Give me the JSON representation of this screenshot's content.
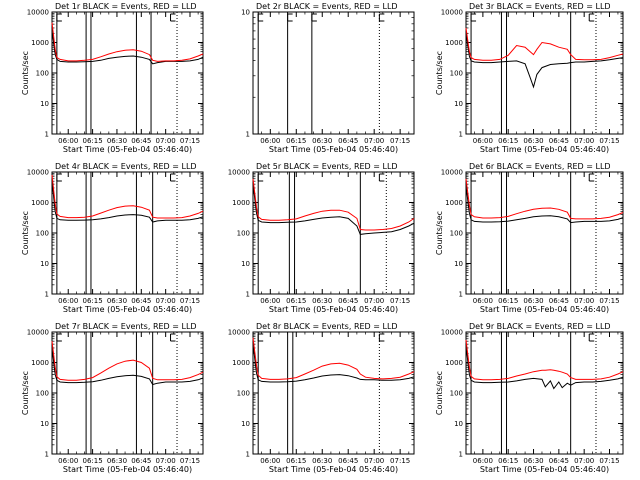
{
  "figure": {
    "background": "#ffffff",
    "colors": {
      "events": "#000000",
      "lld": "#ff0000",
      "axes": "#000000"
    }
  },
  "chart_data": [
    {
      "type": "line",
      "title": "Det 1r  BLACK = Events, RED = LLD",
      "xlabel": "Start Time (05-Feb-04 05:46:40)",
      "ylabel": "Counts/sec",
      "yscale": "log",
      "ylim": [
        1,
        10000
      ],
      "xlim": [
        "05:50",
        "07:23"
      ],
      "xticks": [
        "06:00",
        "06:15",
        "06:30",
        "06:45",
        "07:00",
        "07:15"
      ],
      "yticks": [
        "1",
        "10",
        "100",
        "1000",
        "10000"
      ],
      "solid_vlines": [
        "05:53",
        "06:11",
        "06:14",
        "06:42",
        "06:51"
      ],
      "dotted_vlines": [
        "07:07"
      ],
      "flag_marks": [
        "05:53",
        "07:03"
      ],
      "x": [
        "05:50",
        "05:52",
        "05:53",
        "05:55",
        "06:00",
        "06:05",
        "06:10",
        "06:15",
        "06:20",
        "06:25",
        "06:30",
        "06:35",
        "06:40",
        "06:45",
        "06:50",
        "06:52",
        "06:55",
        "07:00",
        "07:05",
        "07:10",
        "07:15",
        "07:20",
        "07:23"
      ],
      "series": [
        {
          "name": "BLACK = Events",
          "color": "#000000",
          "values": [
            2500,
            400,
            280,
            240,
            230,
            230,
            235,
            240,
            260,
            300,
            330,
            350,
            360,
            330,
            280,
            200,
            220,
            240,
            240,
            240,
            250,
            280,
            330
          ]
        },
        {
          "name": "RED = LLD",
          "color": "#ff0000",
          "values": [
            4500,
            600,
            320,
            280,
            250,
            250,
            260,
            280,
            340,
            420,
            500,
            560,
            580,
            520,
            400,
            260,
            240,
            250,
            250,
            260,
            290,
            360,
            420
          ]
        }
      ]
    },
    {
      "type": "line",
      "title": "Det 2r  BLACK = Events, RED = LLD",
      "xlabel": "Start Time (05-Feb-04 05:46:40)",
      "ylabel": "",
      "yscale": "log",
      "ylim": [
        1,
        10
      ],
      "xlim": [
        "05:50",
        "07:23"
      ],
      "xticks": [
        "06:00",
        "06:15",
        "06:30",
        "06:45",
        "07:00",
        "07:15"
      ],
      "yticks": [
        "1",
        "10"
      ],
      "solid_vlines": [
        "05:53",
        "06:10",
        "06:24"
      ],
      "dotted_vlines": [
        "07:03",
        "07:23"
      ],
      "flag_marks": [
        "05:53",
        "06:10",
        "06:24",
        "07:03"
      ],
      "x": [],
      "series": []
    },
    {
      "type": "line",
      "title": "Det 3r  BLACK = Events, RED = LLD",
      "xlabel": "Start Time (05-Feb-04 05:46:40)",
      "ylabel": "Counts/sec",
      "yscale": "log",
      "ylim": [
        1,
        10000
      ],
      "xlim": [
        "05:50",
        "07:23"
      ],
      "xticks": [
        "06:00",
        "06:15",
        "06:30",
        "06:45",
        "07:00",
        "07:15"
      ],
      "yticks": [
        "1",
        "10",
        "100",
        "1000",
        "10000"
      ],
      "solid_vlines": [
        "05:53",
        "06:11",
        "06:14",
        "06:52"
      ],
      "dotted_vlines": [
        "07:07"
      ],
      "flag_marks": [
        "05:53",
        "07:03"
      ],
      "x": [
        "05:50",
        "05:52",
        "05:53",
        "05:55",
        "06:00",
        "06:05",
        "06:10",
        "06:15",
        "06:20",
        "06:25",
        "06:28",
        "06:30",
        "06:32",
        "06:35",
        "06:40",
        "06:45",
        "06:50",
        "06:52",
        "06:55",
        "07:00",
        "07:05",
        "07:10",
        "07:15",
        "07:20",
        "07:23"
      ],
      "series": [
        {
          "name": "BLACK = Events",
          "color": "#000000",
          "values": [
            2000,
            350,
            250,
            230,
            220,
            220,
            230,
            240,
            250,
            200,
            70,
            35,
            90,
            150,
            190,
            200,
            210,
            220,
            230,
            230,
            240,
            250,
            270,
            300,
            320
          ]
        },
        {
          "name": "RED = LLD",
          "color": "#ff0000",
          "values": [
            3000,
            500,
            320,
            280,
            260,
            260,
            280,
            380,
            800,
            700,
            500,
            400,
            600,
            1000,
            900,
            700,
            600,
            400,
            280,
            270,
            270,
            280,
            320,
            380,
            420
          ]
        }
      ]
    },
    {
      "type": "line",
      "title": "Det 4r  BLACK = Events, RED = LLD",
      "xlabel": "Start Time (05-Feb-04 05:46:40)",
      "ylabel": "Counts/sec",
      "yscale": "log",
      "ylim": [
        1,
        10000
      ],
      "xlim": [
        "05:50",
        "07:23"
      ],
      "xticks": [
        "06:00",
        "06:15",
        "06:30",
        "06:45",
        "07:00",
        "07:15"
      ],
      "yticks": [
        "1",
        "10",
        "100",
        "1000",
        "10000"
      ],
      "solid_vlines": [
        "05:53",
        "06:11",
        "06:14",
        "06:42",
        "06:52"
      ],
      "dotted_vlines": [
        "07:07"
      ],
      "flag_marks": [
        "05:53",
        "07:03"
      ],
      "x": [
        "05:50",
        "05:52",
        "05:53",
        "05:55",
        "06:00",
        "06:05",
        "06:10",
        "06:15",
        "06:20",
        "06:25",
        "06:30",
        "06:35",
        "06:40",
        "06:45",
        "06:50",
        "06:52",
        "06:55",
        "07:00",
        "07:05",
        "07:10",
        "07:15",
        "07:20",
        "07:23"
      ],
      "series": [
        {
          "name": "BLACK = Events",
          "color": "#000000",
          "values": [
            5000,
            500,
            300,
            270,
            260,
            260,
            265,
            270,
            290,
            320,
            360,
            390,
            400,
            380,
            330,
            230,
            250,
            260,
            260,
            260,
            270,
            300,
            340
          ]
        },
        {
          "name": "RED = LLD",
          "color": "#ff0000",
          "values": [
            8000,
            900,
            420,
            350,
            320,
            320,
            330,
            360,
            450,
            560,
            680,
            760,
            780,
            700,
            560,
            330,
            310,
            310,
            310,
            320,
            360,
            440,
            520
          ]
        }
      ]
    },
    {
      "type": "line",
      "title": "Det 5r  BLACK = Events, RED = LLD",
      "xlabel": "Start Time (05-Feb-04 05:46:40)",
      "ylabel": "",
      "yscale": "log",
      "ylim": [
        1,
        10000
      ],
      "xlim": [
        "05:50",
        "07:23"
      ],
      "xticks": [
        "06:00",
        "06:15",
        "06:30",
        "06:45",
        "07:00",
        "07:15"
      ],
      "yticks": [
        "1",
        "10",
        "100",
        "1000",
        "10000"
      ],
      "solid_vlines": [
        "05:53",
        "06:11",
        "06:14",
        "06:52"
      ],
      "dotted_vlines": [
        "07:07"
      ],
      "flag_marks": [
        "05:53",
        "07:03"
      ],
      "x": [
        "05:50",
        "05:52",
        "05:53",
        "05:55",
        "06:00",
        "06:05",
        "06:10",
        "06:15",
        "06:20",
        "06:25",
        "06:30",
        "06:35",
        "06:40",
        "06:45",
        "06:50",
        "06:52",
        "06:55",
        "07:00",
        "07:05",
        "07:10",
        "07:15",
        "07:20",
        "07:23"
      ],
      "series": [
        {
          "name": "BLACK = Events",
          "color": "#000000",
          "values": [
            4000,
            450,
            260,
            230,
            220,
            220,
            225,
            230,
            250,
            280,
            310,
            330,
            340,
            300,
            170,
            90,
            95,
            100,
            105,
            110,
            130,
            170,
            210
          ]
        },
        {
          "name": "RED = LLD",
          "color": "#ff0000",
          "values": [
            6000,
            700,
            340,
            280,
            260,
            260,
            270,
            290,
            360,
            440,
            520,
            560,
            560,
            480,
            300,
            130,
            125,
            125,
            130,
            140,
            170,
            230,
            300
          ]
        }
      ]
    },
    {
      "type": "line",
      "title": "Det 6r  BLACK = Events, RED = LLD",
      "xlabel": "Start Time (05-Feb-04 05:46:40)",
      "ylabel": "Counts/sec",
      "yscale": "log",
      "ylim": [
        1,
        10000
      ],
      "xlim": [
        "05:50",
        "07:23"
      ],
      "xticks": [
        "06:00",
        "06:15",
        "06:30",
        "06:45",
        "07:00",
        "07:15"
      ],
      "yticks": [
        "1",
        "10",
        "100",
        "1000",
        "10000"
      ],
      "solid_vlines": [
        "05:53",
        "06:11",
        "06:14",
        "06:52"
      ],
      "dotted_vlines": [
        "07:07"
      ],
      "flag_marks": [
        "05:53",
        "07:03"
      ],
      "x": [
        "05:50",
        "05:52",
        "05:53",
        "05:55",
        "06:00",
        "06:05",
        "06:10",
        "06:15",
        "06:20",
        "06:25",
        "06:30",
        "06:35",
        "06:40",
        "06:45",
        "06:50",
        "06:52",
        "06:55",
        "07:00",
        "07:05",
        "07:10",
        "07:15",
        "07:20",
        "07:23"
      ],
      "series": [
        {
          "name": "BLACK = Events",
          "color": "#000000",
          "values": [
            3500,
            450,
            270,
            240,
            230,
            230,
            235,
            245,
            270,
            300,
            340,
            360,
            370,
            340,
            290,
            220,
            230,
            240,
            240,
            240,
            250,
            280,
            320
          ]
        },
        {
          "name": "RED = LLD",
          "color": "#ff0000",
          "values": [
            6000,
            800,
            400,
            340,
            310,
            310,
            320,
            350,
            430,
            520,
            600,
            650,
            660,
            600,
            480,
            300,
            290,
            290,
            290,
            300,
            330,
            400,
            470
          ]
        }
      ]
    },
    {
      "type": "line",
      "title": "Det 7r  BLACK = Events, RED = LLD",
      "xlabel": "Start Time (05-Feb-04 05:46:40)",
      "ylabel": "Counts/sec",
      "yscale": "log",
      "ylim": [
        1,
        10000
      ],
      "xlim": [
        "05:50",
        "07:23"
      ],
      "xticks": [
        "06:00",
        "06:15",
        "06:30",
        "06:45",
        "07:00",
        "07:15"
      ],
      "yticks": [
        "1",
        "10",
        "100",
        "1000",
        "10000"
      ],
      "solid_vlines": [
        "05:53",
        "06:11",
        "06:14",
        "06:42",
        "06:52"
      ],
      "dotted_vlines": [
        "07:07"
      ],
      "flag_marks": [
        "05:53",
        "07:03"
      ],
      "x": [
        "05:50",
        "05:52",
        "05:53",
        "05:55",
        "06:00",
        "06:05",
        "06:10",
        "06:15",
        "06:20",
        "06:25",
        "06:30",
        "06:35",
        "06:40",
        "06:45",
        "06:50",
        "06:52",
        "06:55",
        "07:00",
        "07:05",
        "07:10",
        "07:15",
        "07:20",
        "07:23"
      ],
      "series": [
        {
          "name": "BLACK = Events",
          "color": "#000000",
          "values": [
            3000,
            400,
            260,
            230,
            220,
            220,
            225,
            235,
            260,
            300,
            340,
            370,
            380,
            350,
            290,
            190,
            210,
            230,
            230,
            230,
            240,
            270,
            310
          ]
        },
        {
          "name": "RED = LLD",
          "color": "#ff0000",
          "values": [
            5000,
            700,
            340,
            280,
            260,
            260,
            280,
            320,
            450,
            650,
            900,
            1100,
            1200,
            1000,
            650,
            300,
            270,
            270,
            270,
            280,
            320,
            400,
            480
          ]
        }
      ]
    },
    {
      "type": "line",
      "title": "Det 8r  BLACK = Events, RED = LLD",
      "xlabel": "Start Time (05-Feb-04 05:46:40)",
      "ylabel": "",
      "yscale": "log",
      "ylim": [
        1,
        10000
      ],
      "xlim": [
        "05:50",
        "07:23"
      ],
      "xticks": [
        "06:00",
        "06:15",
        "06:30",
        "06:45",
        "07:00",
        "07:15"
      ],
      "yticks": [
        "1",
        "10",
        "100",
        "1000",
        "10000"
      ],
      "solid_vlines": [
        "05:53",
        "06:10",
        "06:13"
      ],
      "dotted_vlines": [
        "07:03"
      ],
      "flag_marks": [
        "05:53",
        "07:03"
      ],
      "x": [
        "05:50",
        "05:52",
        "05:53",
        "05:55",
        "06:00",
        "06:05",
        "06:10",
        "06:15",
        "06:20",
        "06:25",
        "06:30",
        "06:35",
        "06:40",
        "06:45",
        "06:50",
        "06:52",
        "06:55",
        "07:00",
        "07:05",
        "07:10",
        "07:15",
        "07:20",
        "07:23"
      ],
      "series": [
        {
          "name": "BLACK = Events",
          "color": "#000000",
          "values": [
            4000,
            450,
            270,
            240,
            230,
            230,
            235,
            245,
            270,
            310,
            360,
            390,
            400,
            370,
            310,
            280,
            270,
            270,
            260,
            260,
            270,
            300,
            340
          ]
        },
        {
          "name": "RED = LLD",
          "color": "#ff0000",
          "values": [
            6500,
            800,
            380,
            300,
            280,
            280,
            290,
            320,
            420,
            560,
            760,
            900,
            940,
            820,
            600,
            420,
            330,
            300,
            290,
            300,
            330,
            420,
            500
          ]
        }
      ]
    },
    {
      "type": "line",
      "title": "Det 9r  BLACK = Events, RED = LLD",
      "xlabel": "Start Time (05-Feb-04 05:46:40)",
      "ylabel": "Counts/sec",
      "yscale": "log",
      "ylim": [
        1,
        10000
      ],
      "xlim": [
        "05:50",
        "07:23"
      ],
      "xticks": [
        "06:00",
        "06:15",
        "06:30",
        "06:45",
        "07:00",
        "07:15"
      ],
      "yticks": [
        "1",
        "10",
        "100",
        "1000",
        "10000"
      ],
      "solid_vlines": [
        "05:53",
        "06:11",
        "06:14",
        "06:52"
      ],
      "dotted_vlines": [
        "07:07"
      ],
      "flag_marks": [
        "05:53",
        "07:03"
      ],
      "x": [
        "05:50",
        "05:52",
        "05:53",
        "05:55",
        "06:00",
        "06:05",
        "06:10",
        "06:15",
        "06:20",
        "06:25",
        "06:30",
        "06:35",
        "06:37",
        "06:40",
        "06:42",
        "06:45",
        "06:47",
        "06:50",
        "06:52",
        "06:55",
        "07:00",
        "07:05",
        "07:10",
        "07:15",
        "07:20",
        "07:23"
      ],
      "series": [
        {
          "name": "BLACK = Events",
          "color": "#000000",
          "values": [
            3500,
            400,
            260,
            230,
            220,
            220,
            225,
            230,
            250,
            280,
            300,
            280,
            160,
            250,
            140,
            230,
            150,
            210,
            180,
            220,
            230,
            230,
            240,
            260,
            290,
            330
          ]
        },
        {
          "name": "RED = LLD",
          "color": "#ff0000",
          "values": [
            5500,
            700,
            350,
            290,
            270,
            270,
            280,
            300,
            360,
            420,
            500,
            560,
            560,
            580,
            560,
            520,
            480,
            420,
            320,
            280,
            280,
            280,
            290,
            330,
            420,
            500
          ]
        }
      ]
    }
  ]
}
